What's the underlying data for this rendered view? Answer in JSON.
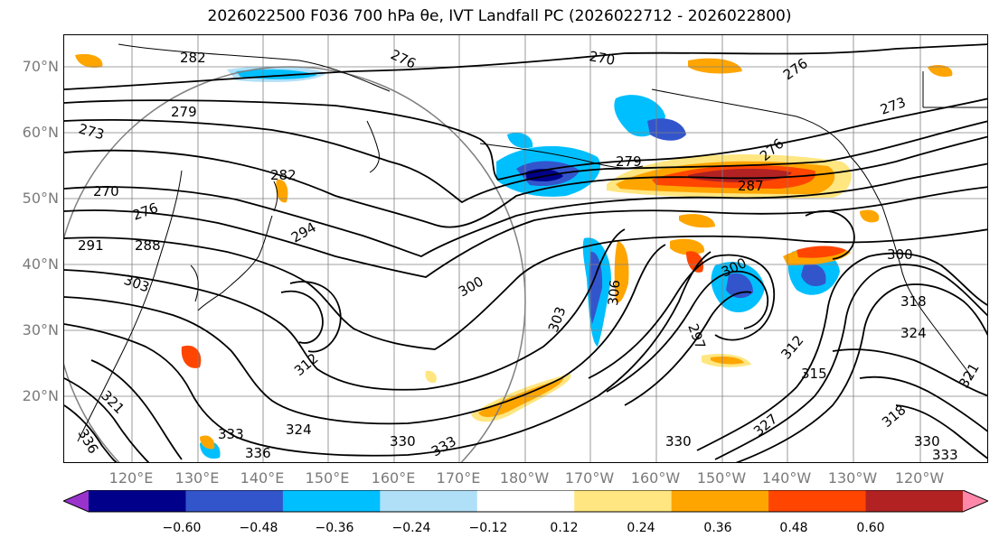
{
  "title": "2026022500 F036 700 hPa θe, IVT Landfall PC (2026022712 - 2026022800)",
  "latitude_labels": [
    "70°N",
    "60°N",
    "50°N",
    "40°N",
    "30°N",
    "20°N"
  ],
  "longitude_labels": [
    "120°E",
    "130°E",
    "140°E",
    "150°E",
    "160°E",
    "170°E",
    "180°W",
    "170°W",
    "160°W",
    "150°W",
    "140°W",
    "130°W",
    "120°W"
  ],
  "contour_labels": [
    "282",
    "276",
    "270",
    "276",
    "273",
    "279",
    "273",
    "282",
    "270",
    "276",
    "291",
    "288",
    "294",
    "303",
    "300",
    "279",
    "276",
    "287",
    "300",
    "303",
    "306",
    "300",
    "297",
    "318",
    "324",
    "312",
    "315",
    "321",
    "330",
    "327",
    "312",
    "333",
    "336",
    "321",
    "324",
    "330",
    "333",
    "336",
    "330",
    "318",
    "333"
  ],
  "colorbar": {
    "ticks": [
      "−0.60",
      "−0.48",
      "−0.36",
      "−0.24",
      "−0.12",
      "0.12",
      "0.24",
      "0.36",
      "0.48",
      "0.60"
    ],
    "colors": [
      "#9933cc",
      "#00008b",
      "#3355cc",
      "#00bfff",
      "#b0e0f8",
      "#ffffff",
      "#ffe680",
      "#ffa500",
      "#ff4500",
      "#b22222",
      "#ff88aa"
    ]
  },
  "colors": {
    "contour": "#000000",
    "grid": "#808080",
    "coast": "#000000"
  }
}
